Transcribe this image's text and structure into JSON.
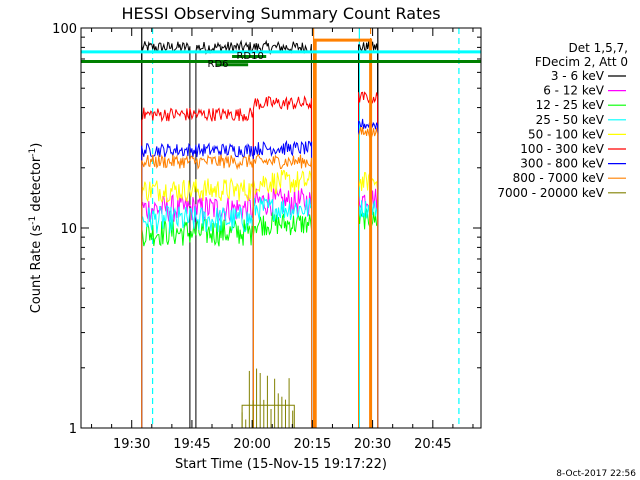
{
  "chart_data": {
    "type": "line",
    "title": "HESSI Observing Summary Count Rates",
    "xlabel": "Start Time (15-Nov-15 19:17:22)",
    "ylabel": "Count Rate (s⁻¹ detector⁻¹)",
    "ylabel_main": "Count Rate (s",
    "ylabel_sup1": "-1",
    "ylabel_mid": " detector",
    "ylabel_sup2": "-1",
    "ylabel_end": ")",
    "yscale": "log",
    "ylim": [
      1,
      100
    ],
    "xlim": [
      "19:17:22",
      "20:57:00"
    ],
    "x_tick_labels": [
      "19:30",
      "19:45",
      "20:00",
      "20:15",
      "20:30",
      "20:45"
    ],
    "x_tick_minutes": [
      30,
      45,
      60,
      75,
      90,
      105
    ],
    "x_range_minutes": [
      17.37,
      117.0
    ],
    "y_tick_labels": [
      "1",
      "10",
      "100"
    ],
    "y_tick_values": [
      1,
      10,
      100
    ],
    "legend_title": [
      "Det 1,5,7,",
      "FDecim 2, Att 0"
    ],
    "legend_position": "right",
    "date_stamp": "8-Oct-2017 22:56",
    "series": [
      {
        "name": "3 - 6 keV",
        "color": "#000000",
        "segments": [
          [
            32.5,
            44.5,
            80,
            0.03
          ],
          [
            46,
            74.8,
            80,
            0.03
          ],
          [
            86.5,
            91.3,
            80,
            0.03
          ]
        ]
      },
      {
        "name": "6 - 12 keV",
        "color": "#ff00ff",
        "segments": [
          [
            32.5,
            60.3,
            12.5,
            0.07
          ],
          [
            60.3,
            74.8,
            13.5,
            0.07
          ],
          [
            86.5,
            91.3,
            14,
            0.06
          ]
        ]
      },
      {
        "name": "12 - 25 keV",
        "color": "#00ff00",
        "segments": [
          [
            32.5,
            60.3,
            9.5,
            0.07
          ],
          [
            60.3,
            74.8,
            10.5,
            0.06
          ],
          [
            86.5,
            91.3,
            11,
            0.05
          ]
        ]
      },
      {
        "name": "25 - 50 keV",
        "color": "#00ffff",
        "segments": [
          [
            32.5,
            60.3,
            11,
            0.07
          ],
          [
            60.3,
            74.8,
            12.5,
            0.06
          ],
          [
            86.5,
            91.3,
            12.5,
            0.05
          ]
        ]
      },
      {
        "name": "50 - 100 keV",
        "color": "#ffff00",
        "segments": [
          [
            32.5,
            60.3,
            15.5,
            0.06
          ],
          [
            60.3,
            74.8,
            17,
            0.06
          ],
          [
            86.5,
            91.3,
            17,
            0.05
          ]
        ]
      },
      {
        "name": "100 - 300 keV",
        "color": "#ff0000",
        "segments": [
          [
            32.5,
            60.3,
            37,
            0.035
          ],
          [
            60.3,
            74.8,
            42,
            0.035
          ],
          [
            86.5,
            91.3,
            45,
            0.03
          ]
        ]
      },
      {
        "name": "300 - 800 keV",
        "color": "#0000ff",
        "segments": [
          [
            32.5,
            60.3,
            24.5,
            0.035
          ],
          [
            60.3,
            74.8,
            25,
            0.035
          ],
          [
            86.5,
            91.3,
            33,
            0.03
          ]
        ]
      },
      {
        "name": "800 - 7000 keV",
        "color": "#ff8000",
        "segments": [
          [
            32.5,
            60.3,
            21.5,
            0.035
          ],
          [
            60.3,
            74.8,
            21.5,
            0.035
          ],
          [
            75.7,
            89.5,
            87,
            0.0
          ],
          [
            86.5,
            91.3,
            30,
            0.03
          ]
        ]
      },
      {
        "name": "7000 - 20000 keV",
        "color": "#808000",
        "segments": [
          [
            57.5,
            70.5,
            1.3,
            0.0
          ]
        ]
      }
    ],
    "annotations": [
      {
        "text": "RD10",
        "x": 59.5,
        "y": 70
      },
      {
        "text": "RD6",
        "x": 51.5,
        "y": 64
      }
    ],
    "flag_lines": [
      {
        "name": "flag-cyan",
        "color": "#00ffff",
        "y": 76,
        "from": 17.37,
        "to": 117.0,
        "width": 3
      },
      {
        "name": "flag-green",
        "color": "#008000",
        "y": 68,
        "from": 17.37,
        "to": 117.0,
        "width": 3
      }
    ],
    "attenuator_bars": [
      {
        "color": "#008000",
        "y": 72,
        "from": 55,
        "to": 63.5
      },
      {
        "color": "#008000",
        "y": 65.5,
        "from": 51,
        "to": 59
      }
    ],
    "vlines": [
      {
        "x": 32.5,
        "color": "#000000",
        "dash": false
      },
      {
        "x": 35.2,
        "color": "#00ffff",
        "dash": true
      },
      {
        "x": 75.3,
        "color": "#ff8000",
        "dash": false
      },
      {
        "x": 89.5,
        "color": "#ff8000",
        "dash": true
      },
      {
        "x": 91.3,
        "color": "#000000",
        "dash": false
      },
      {
        "x": 86.7,
        "color": "#00ffff",
        "dash": false
      },
      {
        "x": 111.5,
        "color": "#00ffff",
        "dash": true
      }
    ]
  }
}
